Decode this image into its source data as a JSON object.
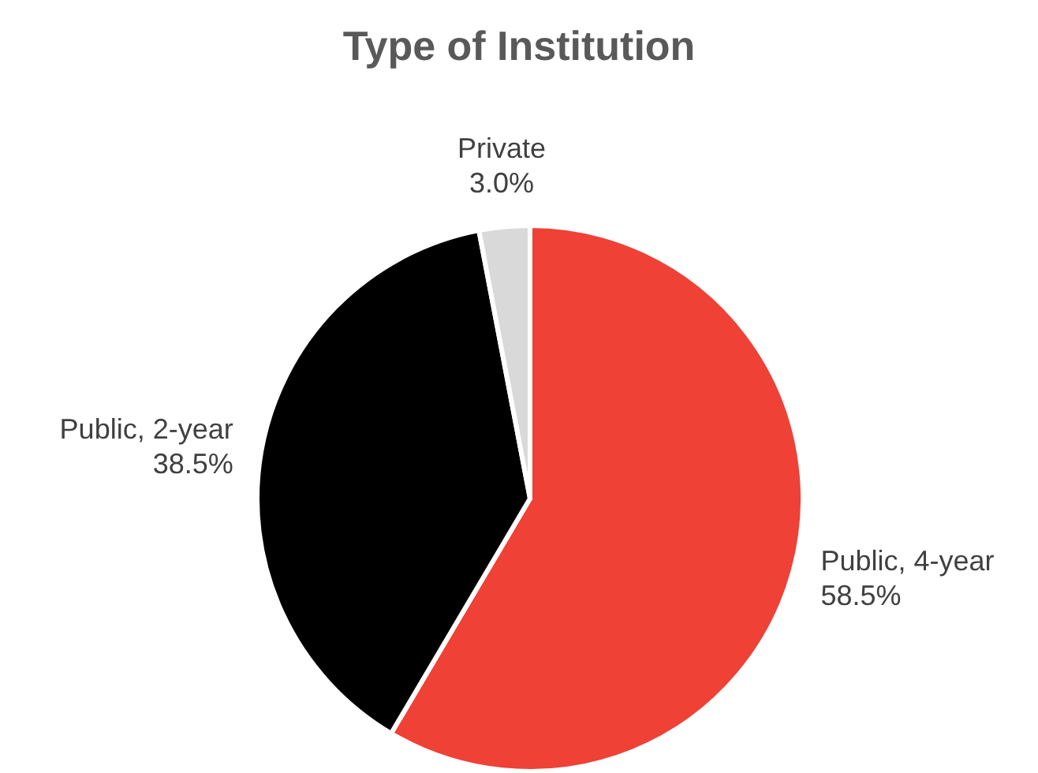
{
  "chart_data": {
    "type": "pie",
    "title": "Type of Institution",
    "categories": [
      "Public, 4-year",
      "Public, 2-year",
      "Private"
    ],
    "values": [
      58.5,
      38.5,
      3.0
    ],
    "value_labels": [
      "58.5%",
      "38.5%",
      "3.0%"
    ],
    "colors": [
      "#ef4136",
      "#000000",
      "#d9d9d9"
    ]
  }
}
